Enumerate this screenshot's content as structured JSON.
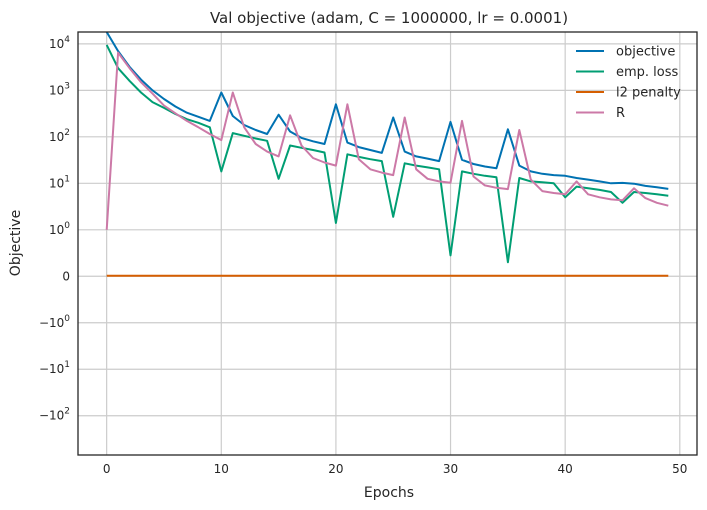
{
  "chart_data": {
    "type": "line",
    "title": "Val objective (adam, C = 1000000, lr = 0.0001)",
    "xlabel": "Epochs",
    "ylabel": "Objective",
    "yscale": "symlog",
    "xlim": [
      -2.5,
      51.5
    ],
    "ylim": [
      -700,
      18000
    ],
    "grid": true,
    "legend_position": "top-right",
    "xticks": [
      0,
      10,
      20,
      30,
      40,
      50
    ],
    "xtick_labels": [
      "0",
      "10",
      "20",
      "30",
      "40",
      "50"
    ],
    "yticks": [
      10000,
      1000,
      100,
      10,
      1,
      0,
      -1,
      -10,
      -100
    ],
    "ytick_labels": [
      {
        "base": "10",
        "exp": "4"
      },
      {
        "base": "10",
        "exp": "3"
      },
      {
        "base": "10",
        "exp": "2"
      },
      {
        "base": "10",
        "exp": "1"
      },
      {
        "base": "10",
        "exp": "0"
      },
      {
        "base": "0",
        "exp": ""
      },
      {
        "base": "−10",
        "exp": "0"
      },
      {
        "base": "−10",
        "exp": "1"
      },
      {
        "base": "−10",
        "exp": "2"
      }
    ],
    "series": [
      {
        "name": "objective",
        "color": "#0072b2",
        "x": [
          0,
          1,
          2,
          3,
          4,
          5,
          6,
          7,
          8,
          9,
          10,
          11,
          12,
          13,
          14,
          15,
          16,
          17,
          18,
          19,
          20,
          21,
          22,
          23,
          24,
          25,
          26,
          27,
          28,
          29,
          30,
          31,
          32,
          33,
          34,
          35,
          36,
          37,
          38,
          39,
          40,
          41,
          42,
          43,
          44,
          45,
          46,
          47,
          48,
          49
        ],
        "y": [
          18000,
          7000,
          3200,
          1700,
          1000,
          650,
          450,
          330,
          270,
          220,
          900,
          280,
          180,
          140,
          115,
          300,
          130,
          95,
          80,
          70,
          500,
          75,
          60,
          52,
          45,
          260,
          48,
          38,
          34,
          30,
          210,
          32,
          26,
          23,
          21,
          145,
          24,
          18,
          16,
          15,
          14.5,
          13,
          12,
          11,
          10,
          10.2,
          9.8,
          8.8,
          8.2,
          7.6
        ]
      },
      {
        "name": "emp. loss",
        "color": "#009e73",
        "x": [
          0,
          1,
          2,
          3,
          4,
          5,
          6,
          7,
          8,
          9,
          10,
          11,
          12,
          13,
          14,
          15,
          16,
          17,
          18,
          19,
          20,
          21,
          22,
          23,
          24,
          25,
          26,
          27,
          28,
          29,
          30,
          31,
          32,
          33,
          34,
          35,
          36,
          37,
          38,
          39,
          40,
          41,
          42,
          43,
          44,
          45,
          46,
          47,
          48,
          49
        ],
        "y": [
          9500,
          3000,
          1600,
          900,
          560,
          420,
          310,
          240,
          200,
          160,
          18,
          120,
          105,
          92,
          82,
          12.5,
          65,
          58,
          52,
          46,
          1.4,
          42,
          37,
          33,
          30,
          1.9,
          27,
          24,
          22,
          20,
          0.45,
          18,
          16,
          14.5,
          13.5,
          0.3,
          13,
          11,
          10.5,
          10,
          5,
          8.5,
          7.8,
          7.2,
          6.5,
          3.8,
          6.5,
          6.2,
          5.8,
          5.4
        ]
      },
      {
        "name": "l2 penalty",
        "color": "#d55e00",
        "x": [
          0,
          49
        ],
        "y": [
          0.012,
          0.012
        ]
      },
      {
        "name": "R",
        "color": "#cc79a7",
        "x": [
          0,
          1,
          2,
          3,
          4,
          5,
          6,
          7,
          8,
          9,
          10,
          11,
          12,
          13,
          14,
          15,
          16,
          17,
          18,
          19,
          20,
          21,
          22,
          23,
          24,
          25,
          26,
          27,
          28,
          29,
          30,
          31,
          32,
          33,
          34,
          35,
          36,
          37,
          38,
          39,
          40,
          41,
          42,
          43,
          44,
          45,
          46,
          47,
          48,
          49
        ],
        "y": [
          1,
          6500,
          3000,
          1500,
          850,
          470,
          320,
          220,
          160,
          115,
          85,
          900,
          160,
          70,
          48,
          38,
          290,
          65,
          35,
          28,
          24,
          500,
          33,
          20,
          17,
          15,
          260,
          20,
          12.5,
          11,
          10.3,
          220,
          14,
          9,
          8,
          7.5,
          140,
          12,
          6.8,
          6.2,
          5.8,
          11,
          5.8,
          5,
          4.5,
          4.3,
          7.8,
          4.8,
          3.8,
          3.3
        ]
      }
    ]
  }
}
